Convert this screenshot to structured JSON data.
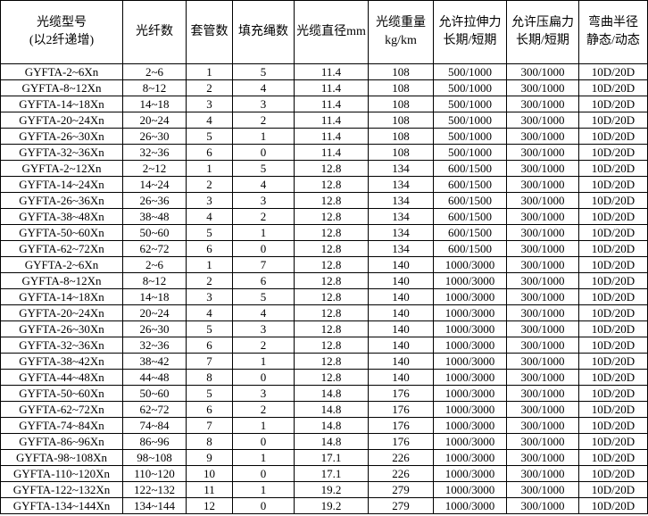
{
  "table": {
    "headers": [
      [
        "光缆型号",
        "(以2纤递增)"
      ],
      [
        "光纤数"
      ],
      [
        "套管数"
      ],
      [
        "填充绳数"
      ],
      [
        "光缆直径mm"
      ],
      [
        "光缆重量",
        "kg/km"
      ],
      [
        "允许拉伸力",
        "长期/短期"
      ],
      [
        "允许压扁力",
        "长期/短期"
      ],
      [
        "弯曲半径",
        "静态/动态"
      ]
    ],
    "rows": [
      [
        "GYFTA-2~6Xn",
        "2~6",
        "1",
        "5",
        "11.4",
        "108",
        "500/1000",
        "300/1000",
        "10D/20D"
      ],
      [
        "GYFTA-8~12Xn",
        "8~12",
        "2",
        "4",
        "11.4",
        "108",
        "500/1000",
        "300/1000",
        "10D/20D"
      ],
      [
        "GYFTA-14~18Xn",
        "14~18",
        "3",
        "3",
        "11.4",
        "108",
        "500/1000",
        "300/1000",
        "10D/20D"
      ],
      [
        "GYFTA-20~24Xn",
        "20~24",
        "4",
        "2",
        "11.4",
        "108",
        "500/1000",
        "300/1000",
        "10D/20D"
      ],
      [
        "GYFTA-26~30Xn",
        "26~30",
        "5",
        "1",
        "11.4",
        "108",
        "500/1000",
        "300/1000",
        "10D/20D"
      ],
      [
        "GYFTA-32~36Xn",
        "32~36",
        "6",
        "0",
        "11.4",
        "108",
        "500/1000",
        "300/1000",
        "10D/20D"
      ],
      [
        "GYFTA-2~12Xn",
        "2~12",
        "1",
        "5",
        "12.8",
        "134",
        "600/1500",
        "300/1000",
        "10D/20D"
      ],
      [
        "GYFTA-14~24Xn",
        "14~24",
        "2",
        "4",
        "12.8",
        "134",
        "600/1500",
        "300/1000",
        "10D/20D"
      ],
      [
        "GYFTA-26~36Xn",
        "26~36",
        "3",
        "3",
        "12.8",
        "134",
        "600/1500",
        "300/1000",
        "10D/20D"
      ],
      [
        "GYFTA-38~48Xn",
        "38~48",
        "4",
        "2",
        "12.8",
        "134",
        "600/1500",
        "300/1000",
        "10D/20D"
      ],
      [
        "GYFTA-50~60Xn",
        "50~60",
        "5",
        "1",
        "12.8",
        "134",
        "600/1500",
        "300/1000",
        "10D/20D"
      ],
      [
        "GYFTA-62~72Xn",
        "62~72",
        "6",
        "0",
        "12.8",
        "134",
        "600/1500",
        "300/1000",
        "10D/20D"
      ],
      [
        "GYFTA-2~6Xn",
        "2~6",
        "1",
        "7",
        "12.8",
        "140",
        "1000/3000",
        "300/1000",
        "10D/20D"
      ],
      [
        "GYFTA-8~12Xn",
        "8~12",
        "2",
        "6",
        "12.8",
        "140",
        "1000/3000",
        "300/1000",
        "10D/20D"
      ],
      [
        "GYFTA-14~18Xn",
        "14~18",
        "3",
        "5",
        "12.8",
        "140",
        "1000/3000",
        "300/1000",
        "10D/20D"
      ],
      [
        "GYFTA-20~24Xn",
        "20~24",
        "4",
        "4",
        "12.8",
        "140",
        "1000/3000",
        "300/1000",
        "10D/20D"
      ],
      [
        "GYFTA-26~30Xn",
        "26~30",
        "5",
        "3",
        "12.8",
        "140",
        "1000/3000",
        "300/1000",
        "10D/20D"
      ],
      [
        "GYFTA-32~36Xn",
        "32~36",
        "6",
        "2",
        "12.8",
        "140",
        "1000/3000",
        "300/1000",
        "10D/20D"
      ],
      [
        "GYFTA-38~42Xn",
        "38~42",
        "7",
        "1",
        "12.8",
        "140",
        "1000/3000",
        "300/1000",
        "10D/20D"
      ],
      [
        "GYFTA-44~48Xn",
        "44~48",
        "8",
        "0",
        "12.8",
        "140",
        "1000/3000",
        "300/1000",
        "10D/20D"
      ],
      [
        "GYFTA-50~60Xn",
        "50~60",
        "5",
        "3",
        "14.8",
        "176",
        "1000/3000",
        "300/1000",
        "10D/20D"
      ],
      [
        "GYFTA-62~72Xn",
        "62~72",
        "6",
        "2",
        "14.8",
        "176",
        "1000/3000",
        "300/1000",
        "10D/20D"
      ],
      [
        "GYFTA-74~84Xn",
        "74~84",
        "7",
        "1",
        "14.8",
        "176",
        "1000/3000",
        "300/1000",
        "10D/20D"
      ],
      [
        "GYFTA-86~96Xn",
        "86~96",
        "8",
        "0",
        "14.8",
        "176",
        "1000/3000",
        "300/1000",
        "10D/20D"
      ],
      [
        "GYFTA-98~108Xn",
        "98~108",
        "9",
        "1",
        "17.1",
        "226",
        "1000/3000",
        "300/1000",
        "10D/20D"
      ],
      [
        "GYFTA-110~120Xn",
        "110~120",
        "10",
        "0",
        "17.1",
        "226",
        "1000/3000",
        "300/1000",
        "10D/20D"
      ],
      [
        "GYFTA-122~132Xn",
        "122~132",
        "11",
        "1",
        "19.2",
        "279",
        "1000/3000",
        "300/1000",
        "10D/20D"
      ],
      [
        "GYFTA-134~144Xn",
        "134~144",
        "12",
        "0",
        "19.2",
        "279",
        "1000/3000",
        "300/1000",
        "10D/20D"
      ]
    ]
  }
}
